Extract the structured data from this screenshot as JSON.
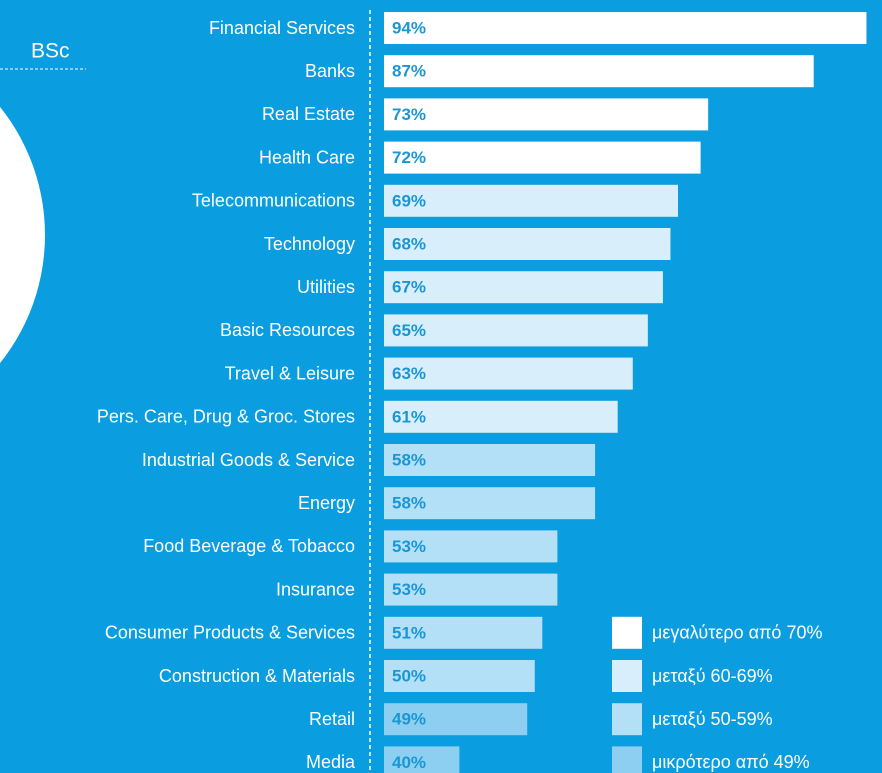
{
  "logo": "BSc",
  "chart_data": {
    "type": "hbar",
    "categories": [
      "Financial Services",
      "Banks",
      "Real Estate",
      "Health Care",
      "Telecommunications",
      "Technology",
      "Utilities",
      "Basic Resources",
      "Travel & Leisure",
      "Pers. Care, Drug & Groc. Stores",
      "Industrial Goods & Service",
      "Energy",
      "Food Beverage & Tobacco",
      "Insurance",
      "Consumer Products & Services",
      "Construction & Materials",
      "Retail",
      "Media"
    ],
    "values": [
      94,
      87,
      73,
      72,
      69,
      68,
      67,
      65,
      63,
      61,
      58,
      58,
      53,
      53,
      51,
      50,
      49,
      40
    ],
    "value_labels": [
      "94%",
      "87%",
      "73%",
      "72%",
      "69%",
      "68%",
      "67%",
      "65%",
      "63%",
      "61%",
      "58%",
      "58%",
      "53%",
      "53%",
      "51%",
      "50%",
      "49%",
      "40%"
    ],
    "colors": [
      "#ffffff",
      "#ffffff",
      "#ffffff",
      "#ffffff",
      "#d8eefa",
      "#d8eefa",
      "#d8eefa",
      "#d8eefa",
      "#d8eefa",
      "#d8eefa",
      "#b3e0f6",
      "#b3e0f6",
      "#b3e0f6",
      "#b3e0f6",
      "#b3e0f6",
      "#b3e0f6",
      "#8ccff1",
      "#8ccff1"
    ],
    "xlim": [
      30,
      95
    ],
    "legend": [
      {
        "label": "μεγαλύτερο από 70%",
        "color": "#ffffff"
      },
      {
        "label": "μεταξύ 60-69%",
        "color": "#d8eefa"
      },
      {
        "label": "μεταξύ 50-59%",
        "color": "#b3e0f6"
      },
      {
        "label": "μικρότερο από 49%",
        "color": "#8ccff1"
      }
    ]
  }
}
